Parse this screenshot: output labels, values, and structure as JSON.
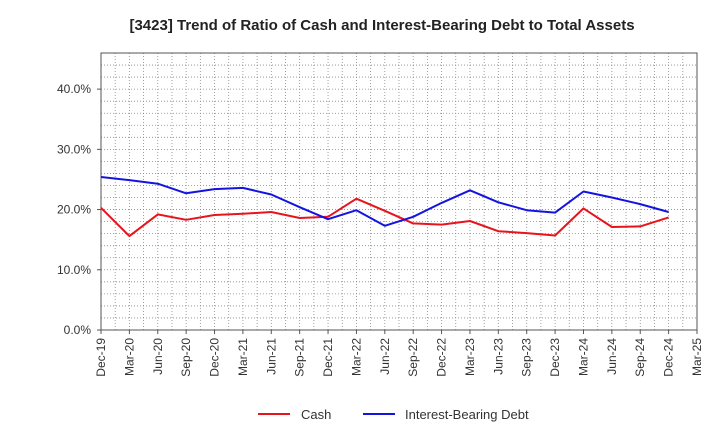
{
  "chart_data": {
    "type": "line",
    "title": "[3423]  Trend of Ratio of Cash and Interest-Bearing Debt to Total Assets",
    "xlabel": "",
    "ylabel": "",
    "x": [
      "Dec-19",
      "Mar-20",
      "Jun-20",
      "Sep-20",
      "Dec-20",
      "Mar-21",
      "Jun-21",
      "Sep-21",
      "Dec-21",
      "Mar-22",
      "Jun-22",
      "Sep-22",
      "Dec-22",
      "Mar-23",
      "Jun-23",
      "Sep-23",
      "Dec-23",
      "Mar-24",
      "Jun-24",
      "Sep-24",
      "Dec-24",
      "Mar-25"
    ],
    "ylim": [
      0,
      46
    ],
    "yticks": [
      0,
      10,
      20,
      30,
      40
    ],
    "ytick_labels": [
      "0.0%",
      "10.0%",
      "20.0%",
      "30.0%",
      "40.0%"
    ],
    "grid": true,
    "legend": "bottom",
    "series": [
      {
        "name": "Cash",
        "color": "#e8141c",
        "values": [
          20.3,
          15.6,
          19.2,
          18.3,
          19.1,
          19.3,
          19.6,
          18.6,
          18.8,
          21.8,
          19.8,
          17.7,
          17.5,
          18.1,
          16.4,
          16.1,
          15.7,
          20.2,
          17.1,
          17.2,
          18.7,
          null
        ]
      },
      {
        "name": "Interest-Bearing Debt",
        "color": "#1414e0",
        "values": [
          25.4,
          24.9,
          24.3,
          22.7,
          23.4,
          23.6,
          22.5,
          20.4,
          18.4,
          19.9,
          17.3,
          18.8,
          21.1,
          23.2,
          21.2,
          19.9,
          19.5,
          23.0,
          22.0,
          20.9,
          19.6,
          null
        ]
      }
    ]
  }
}
